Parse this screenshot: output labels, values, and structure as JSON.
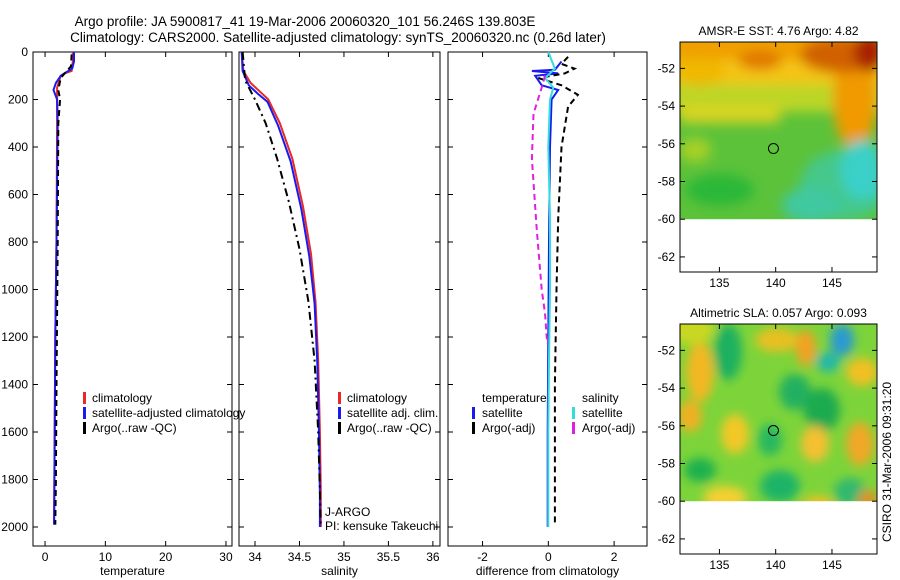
{
  "header": {
    "line1": "Argo profile: JA 5900817_41 19-Mar-2006 20060320_101 56.246S 139.803E",
    "line2": "Climatology: CARS2000. Satellite-adjusted climatology: synTS_20060320.nc (0.26d later)"
  },
  "side_label": "CSIRO 31-Mar-2006 09:31:20",
  "colors": {
    "red": "#e8282a",
    "blue": "#1a1aee",
    "black": "#000000",
    "cyan": "#33dddd",
    "magenta": "#e020e0"
  },
  "chart_data": [
    {
      "type": "line",
      "id": "temperature",
      "xlabel": "temperature",
      "ylabel": "",
      "xlim": [
        -2,
        31
      ],
      "ylim": [
        2080,
        0
      ],
      "xticks": [
        0,
        10,
        20,
        30
      ],
      "xticklabels": [
        "0",
        "10",
        "20",
        "30"
      ],
      "yticks": [
        0,
        200,
        400,
        600,
        800,
        1000,
        1200,
        1400,
        1600,
        1800,
        2000
      ],
      "yticklabels": [
        "0",
        "200",
        "400",
        "600",
        "800",
        "1000",
        "1200",
        "1400",
        "1600",
        "1800",
        "2000"
      ],
      "legend": [
        "climatology",
        "satellite-adjusted climatology",
        "Argo(..raw -QC)"
      ],
      "series": [
        {
          "name": "climatology",
          "color": "red",
          "dash": "none",
          "x": [
            4.6,
            4.6,
            4.4,
            3.2,
            2.6,
            2.0,
            2.0,
            1.9,
            1.7,
            1.6,
            1.5
          ],
          "y": [
            0,
            40,
            80,
            90,
            100,
            150,
            300,
            800,
            1200,
            1600,
            1990
          ]
        },
        {
          "name": "satellite-adjusted climatology",
          "color": "blue",
          "dash": "none",
          "x": [
            4.8,
            4.8,
            4.5,
            3.5,
            2.6,
            1.8,
            1.4,
            2.0,
            2.1,
            1.9,
            1.7,
            1.6,
            1.5
          ],
          "y": [
            0,
            40,
            70,
            85,
            100,
            130,
            160,
            200,
            300,
            800,
            1200,
            1600,
            1990
          ]
        },
        {
          "name": "Argo(..raw -QC)",
          "color": "black",
          "dash": "6,4",
          "x": [
            4.4,
            4.3,
            3.6,
            2.6,
            2.2,
            2.5,
            2.2,
            2.1,
            1.9,
            1.8,
            1.7
          ],
          "y": [
            10,
            60,
            80,
            110,
            160,
            200,
            300,
            800,
            1400,
            1800,
            1990
          ]
        }
      ],
      "annotations": []
    },
    {
      "type": "line",
      "id": "salinity",
      "xlabel": "salinity",
      "ylabel": "",
      "xlim": [
        33.82,
        36.08
      ],
      "ylim": [
        2080,
        0
      ],
      "xticks": [
        34,
        34.5,
        35,
        35.5,
        36
      ],
      "xticklabels": [
        "34",
        "34.5",
        "35",
        "35.5",
        "36"
      ],
      "yticks": [
        0,
        200,
        400,
        600,
        800,
        1000,
        1200,
        1400,
        1600,
        1800,
        2000
      ],
      "yticklabels": [],
      "legend": [
        "climatology",
        "satellite adj. clim.",
        "Argo(..raw -QC)"
      ],
      "series": [
        {
          "name": "climatology",
          "color": "red",
          "dash": "none",
          "x": [
            33.85,
            33.87,
            33.95,
            34.05,
            34.15,
            34.28,
            34.42,
            34.54,
            34.63,
            34.68,
            34.71,
            34.73,
            34.74,
            34.74
          ],
          "y": [
            0,
            80,
            130,
            165,
            200,
            300,
            450,
            650,
            850,
            1050,
            1300,
            1600,
            1850,
            2000
          ]
        },
        {
          "name": "satellite adj. clim.",
          "color": "blue",
          "dash": "none",
          "x": [
            33.85,
            33.86,
            33.93,
            34.03,
            34.14,
            34.26,
            34.4,
            34.52,
            34.61,
            34.67,
            34.7,
            34.72,
            34.73,
            34.73
          ],
          "y": [
            0,
            80,
            140,
            175,
            210,
            310,
            460,
            660,
            860,
            1060,
            1310,
            1610,
            1860,
            2000
          ]
        },
        {
          "name": "Argo(..raw -QC)",
          "color": "black",
          "dash": "8,4,2,4",
          "x": [
            33.86,
            33.89,
            34.0,
            34.12,
            34.25,
            34.38,
            34.5,
            34.6,
            34.67,
            34.71,
            34.73,
            34.74
          ],
          "y": [
            0,
            120,
            200,
            300,
            450,
            630,
            830,
            1050,
            1300,
            1600,
            1850,
            2000
          ]
        }
      ],
      "annotations": [
        "J-ARGO",
        "PI: kensuke Takeuchi"
      ]
    },
    {
      "type": "line",
      "id": "difference",
      "xlabel": "difference from climatology",
      "ylabel": "",
      "xlim": [
        -3.05,
        3.0
      ],
      "ylim": [
        2080,
        0
      ],
      "xticks": [
        -2,
        0,
        2
      ],
      "xticklabels": [
        "-2",
        "0",
        "2"
      ],
      "yticks": [
        0,
        200,
        400,
        600,
        800,
        1000,
        1200,
        1400,
        1600,
        1800,
        2000
      ],
      "yticklabels": [],
      "legend_titles": [
        "temperature",
        "salinity"
      ],
      "legend": [
        "satellite",
        "Argo(-adj)",
        "satellite",
        "Argo(-adj)"
      ],
      "series": [
        {
          "name": "temperature satellite",
          "color": "blue",
          "dash": "none",
          "x": [
            0.4,
            0.2,
            -0.5,
            0.3,
            -0.4,
            -0.2,
            0.3,
            0.1,
            0.05,
            0.02,
            0.0,
            -0.02,
            -0.02
          ],
          "y": [
            40,
            75,
            80,
            90,
            100,
            140,
            160,
            200,
            400,
            800,
            1200,
            1600,
            2000
          ]
        },
        {
          "name": "temperature Argo(-adj)",
          "color": "black",
          "dash": "6,4",
          "x": [
            0.6,
            0.4,
            0.8,
            0.5,
            -0.3,
            0.4,
            0.9,
            0.6,
            0.4,
            0.3,
            0.25,
            0.2,
            0.2,
            0.2
          ],
          "y": [
            20,
            50,
            70,
            90,
            110,
            140,
            180,
            230,
            400,
            700,
            1000,
            1400,
            1800,
            1990
          ]
        },
        {
          "name": "salinity satellite",
          "color": "cyan",
          "dash": "none",
          "x": [
            0.0,
            0.2,
            -0.1,
            0.15,
            0.05,
            0.0,
            0.05,
            0.05,
            0.02,
            0.0,
            0.0,
            0.0
          ],
          "y": [
            0,
            70,
            110,
            150,
            200,
            400,
            700,
            1000,
            1300,
            1600,
            1800,
            2000
          ]
        },
        {
          "name": "salinity Argo(-adj)",
          "color": "magenta",
          "dash": "6,4",
          "x": [
            -0.1,
            -0.2,
            -0.45,
            -0.5,
            -0.35,
            -0.2,
            -0.1,
            -0.05,
            -0.02
          ],
          "y": [
            100,
            150,
            260,
            450,
            750,
            1000,
            1100,
            1200,
            1230
          ]
        }
      ],
      "annotations": []
    },
    {
      "type": "heatmap",
      "id": "sst-map",
      "title": "AMSR-E SST: 4.76  Argo: 4.82",
      "xlim": [
        131.5,
        149
      ],
      "ylim": [
        -62.8,
        -50.6
      ],
      "xticks": [
        135,
        140,
        145
      ],
      "xticklabels": [
        "135",
        "140",
        "145"
      ],
      "yticks": [
        -52,
        -54,
        -56,
        -58,
        -60,
        -62
      ],
      "yticklabels": [
        "-52",
        "-54",
        "-56",
        "-58",
        "-60",
        "-62"
      ],
      "data_extent_lat": [
        -60,
        -50.6
      ],
      "marker": {
        "lon": 139.8,
        "lat": -56.25
      }
    },
    {
      "type": "heatmap",
      "id": "sla-map",
      "title": "Altimetric SLA: 0.057  Argo: 0.093",
      "xlim": [
        131.5,
        149
      ],
      "ylim": [
        -62.8,
        -50.6
      ],
      "xticks": [
        135,
        140,
        145
      ],
      "xticklabels": [
        "135",
        "140",
        "145"
      ],
      "yticks": [
        -52,
        -54,
        -56,
        -58,
        -60,
        -62
      ],
      "yticklabels": [
        "-52",
        "-54",
        "-56",
        "-58",
        "-60",
        "-62"
      ],
      "data_extent_lat": [
        -60,
        -50.6
      ],
      "marker": {
        "lon": 139.8,
        "lat": -56.25
      }
    }
  ]
}
